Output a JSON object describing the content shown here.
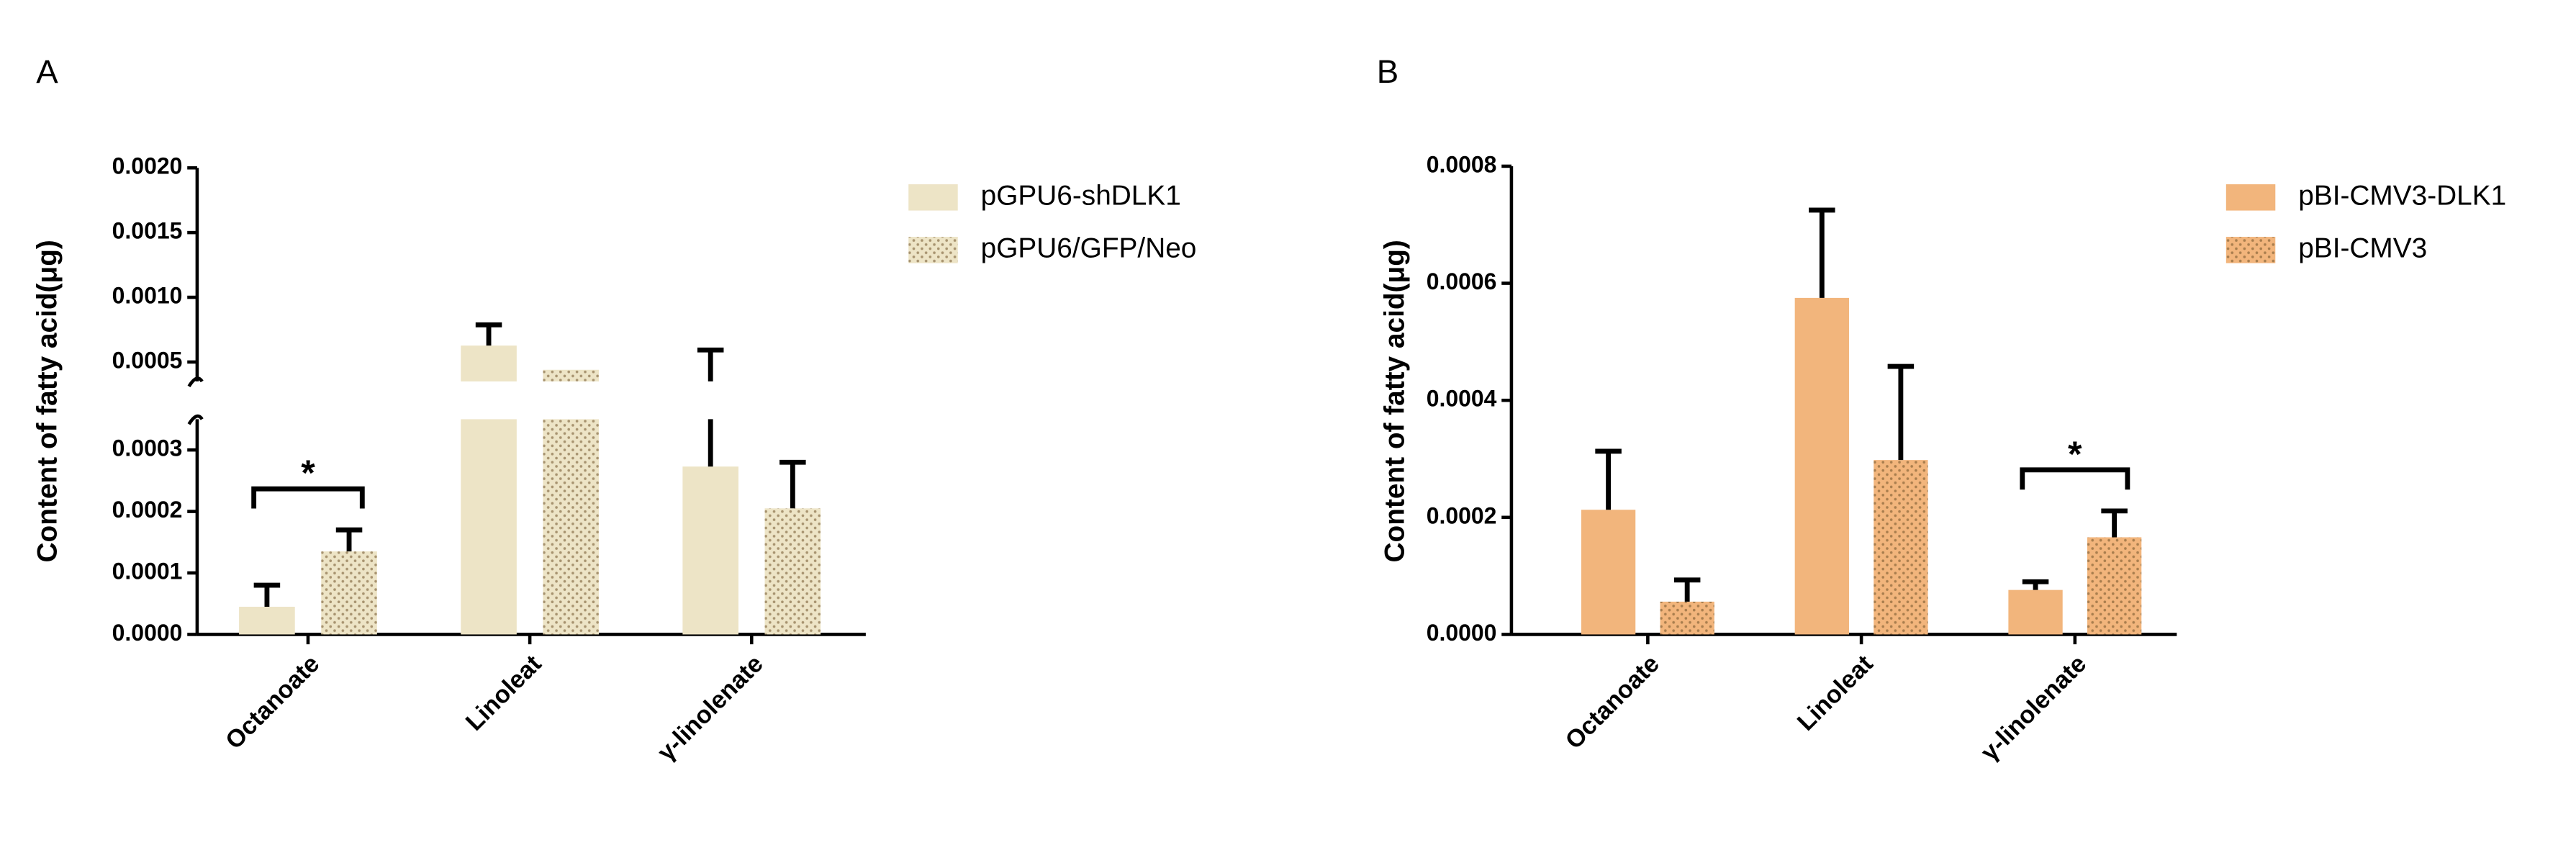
{
  "chart_data": [
    {
      "type": "bar",
      "panel": "A",
      "ylabel": "Content of fatty acid(μg)",
      "categories": [
        "Octanoate",
        "Linoleat",
        "γ-linolenate"
      ],
      "series": [
        {
          "name": "pGPU6-shDLK1",
          "color": "#ede4c6",
          "fill": "solid",
          "values": [
            4.5e-05,
            0.000627,
            0.000273
          ],
          "errors": [
            3.5e-05,
            0.00016,
            0.00032
          ]
        },
        {
          "name": "pGPU6/GFP/Neo",
          "color": "#ede4c6",
          "fill": "dots",
          "values": [
            0.000135,
            0.00044,
            0.000205
          ],
          "errors": [
            3.5e-05,
            0,
            7.5e-05
          ]
        }
      ],
      "ylim": [
        0,
        0.002
      ],
      "ybreak": 0.00035,
      "yticks": [
        {
          "value": 0,
          "label": "0.0000"
        },
        0.0001,
        0.0002,
        0.0003,
        0.0005,
        {
          "value": 0.001,
          "label": "0.0010"
        },
        0.0015,
        {
          "value": 0.002,
          "label": "0.0020"
        }
      ],
      "significance": [
        {
          "label": "*",
          "category": "Octanoate"
        }
      ]
    },
    {
      "type": "bar",
      "panel": "B",
      "ylabel": "Content of fatty acid(μg)",
      "categories": [
        "Octanoate",
        "Linoleat",
        "γ-linolenate"
      ],
      "series": [
        {
          "name": "pBI-CMV3-DLK1",
          "color": "#f2b57c",
          "fill": "solid",
          "values": [
            0.000213,
            0.000575,
            7.6e-05
          ],
          "errors": [
            0.0001,
            0.00015,
            1.4e-05
          ]
        },
        {
          "name": "pBI-CMV3",
          "color": "#f2b57c",
          "fill": "dots",
          "values": [
            5.6e-05,
            0.000298,
            0.000166
          ],
          "errors": [
            3.7e-05,
            0.00016,
            4.5e-05
          ]
        }
      ],
      "ylim": [
        0,
        0.0008
      ],
      "yticks": [
        {
          "value": 0,
          "label": "0.0000"
        },
        0.0002,
        0.0004,
        0.0006,
        0.0008
      ],
      "significance": [
        {
          "label": "*",
          "category": "γ-linolenate"
        }
      ]
    }
  ]
}
